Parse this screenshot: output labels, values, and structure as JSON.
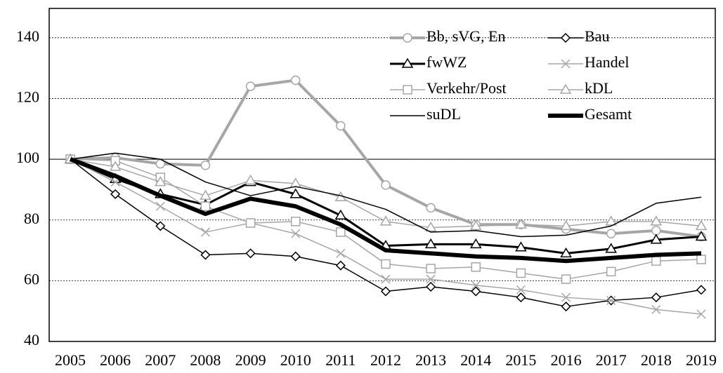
{
  "chart_data": {
    "type": "line",
    "x": [
      2005,
      2006,
      2007,
      2008,
      2009,
      2010,
      2011,
      2012,
      2013,
      2014,
      2015,
      2016,
      2017,
      2018,
      2019
    ],
    "xlim": [
      2005,
      2019
    ],
    "xticks": [
      2005,
      2006,
      2007,
      2008,
      2009,
      2010,
      2011,
      2012,
      2013,
      2014,
      2015,
      2016,
      2017,
      2018,
      2019
    ],
    "ylim": [
      40,
      150
    ],
    "yticks": [
      40,
      60,
      80,
      100,
      120,
      140
    ],
    "grid": true,
    "reference_line": 100,
    "legend": "upper right",
    "series": [
      {
        "name": "Bb, sVG, En",
        "color": "#a6a6a6",
        "marker": "circle",
        "values": [
          100,
          100.5,
          98.5,
          98,
          124,
          126,
          111,
          91.5,
          84,
          78.5,
          78.5,
          77,
          75.5,
          76.5,
          74.5
        ]
      },
      {
        "name": "Bau",
        "color": "#000000",
        "marker": "diamond",
        "values": [
          100,
          88.5,
          78,
          68.5,
          69,
          68,
          65,
          56.5,
          58,
          56.5,
          54.5,
          51.5,
          53.5,
          54.5,
          57
        ]
      },
      {
        "name": "fwWZ",
        "color": "#000000",
        "marker": "triangle",
        "values": [
          100,
          93.5,
          88.5,
          85,
          92.5,
          88.5,
          81.5,
          71.5,
          72,
          72,
          71,
          69,
          70.5,
          73.5,
          74.5
        ]
      },
      {
        "name": "Handel",
        "color": "#a6a6a6",
        "marker": "x",
        "values": [
          100,
          92.5,
          84.5,
          76,
          79,
          75.5,
          69,
          60.5,
          60.5,
          58.5,
          57,
          54.5,
          53.5,
          50.5,
          49
        ]
      },
      {
        "name": "Verkehr/Post",
        "color": "#a6a6a6",
        "marker": "square",
        "values": [
          100,
          99.5,
          94,
          84.5,
          79,
          79.5,
          76,
          65.5,
          64,
          64.5,
          62.5,
          60.5,
          63,
          66.5,
          67
        ]
      },
      {
        "name": "kDL",
        "color": "#a6a6a6",
        "marker": "triangle",
        "values": [
          100,
          97.5,
          92.5,
          88,
          93,
          92,
          87.5,
          79.5,
          77.5,
          78,
          78.5,
          78,
          79.5,
          79.5,
          78
        ]
      },
      {
        "name": "suDL",
        "color": "#000000",
        "marker": "none",
        "values": [
          100,
          102,
          100,
          92.5,
          88,
          91,
          88,
          83.5,
          76,
          76.5,
          74.5,
          75,
          78,
          85.5,
          87.5
        ]
      },
      {
        "name": "Gesamt",
        "color": "#000000",
        "marker": "none",
        "values": [
          100,
          94.5,
          88,
          82,
          87,
          84.5,
          78.5,
          70,
          69,
          68,
          67.5,
          66.5,
          67.5,
          68.5,
          69
        ]
      }
    ]
  }
}
